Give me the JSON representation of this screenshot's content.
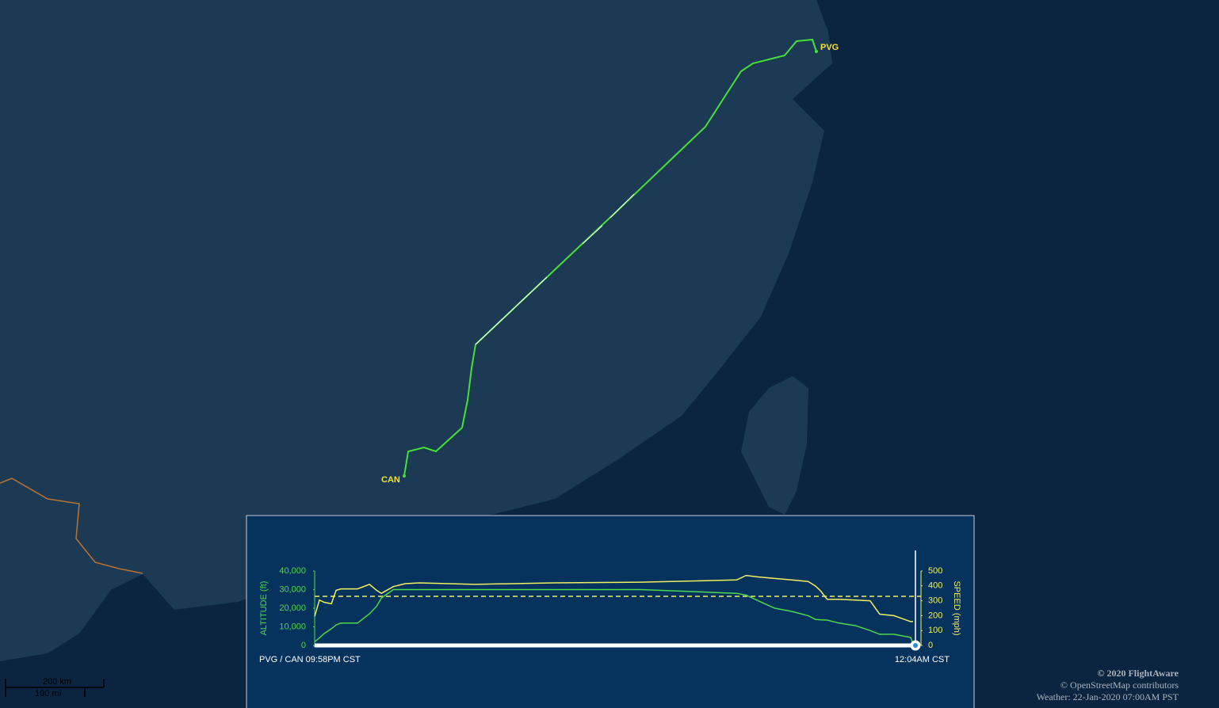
{
  "map": {
    "airports": [
      "PVG",
      "CAN"
    ],
    "scale": [
      "200 km",
      "100 mi"
    ],
    "credits": [
      "© 2020 FlightAware",
      "© OpenStreetMap contributors",
      "Weather: 22-Jan-2020 07:00AM PST"
    ]
  },
  "chart_data": {
    "type": "line",
    "x": [
      0,
      1,
      2,
      3.5,
      4.5,
      5.5,
      7,
      9,
      11.5,
      13,
      14,
      16.5,
      19,
      22,
      33.5,
      50,
      68.5,
      88.5,
      90.5,
      93,
      96.5,
      100,
      103.5,
      105,
      106,
      107.5,
      110,
      113.5,
      116.5,
      118.5,
      121.5,
      125,
      125.5
    ],
    "series": [
      {
        "name": "ALTITUDE (ft)",
        "color": "#4cd94c",
        "values": [
          2000,
          4000,
          6400,
          9000,
          11000,
          12000,
          12000,
          12000,
          17000,
          21000,
          25500,
          30000,
          30000,
          30000,
          30000,
          30000,
          30000,
          28000,
          27000,
          24000,
          20000,
          18300,
          16000,
          14000,
          13800,
          13600,
          12000,
          10600,
          8000,
          6000,
          6000,
          4300,
          900
        ]
      },
      {
        "name": "SPEED (mph)",
        "color": "#f0f060",
        "axis": "y2",
        "values": [
          195,
          305,
          290,
          280,
          370,
          380,
          380,
          380,
          410,
          370,
          350,
          395,
          415,
          420,
          410,
          420,
          425,
          440,
          470,
          460,
          450,
          440,
          430,
          400,
          370,
          310,
          310,
          305,
          300,
          210,
          200,
          160,
          160
        ]
      }
    ],
    "hline": {
      "value": 330,
      "axis": "y2",
      "color": "#f0f060",
      "dash": true
    },
    "xlim": [
      0,
      126
    ],
    "xticks": [
      {
        "value": 0,
        "label": "PVG / CAN 09:58PM CST"
      },
      {
        "value": 126,
        "label": "12:04AM CST"
      }
    ],
    "ylim": [
      0,
      40000
    ],
    "yticks": [
      0,
      {
        "value": 10000,
        "label": "10,000"
      },
      {
        "value": 20000,
        "label": "20,000"
      },
      {
        "value": 30000,
        "label": "30,000"
      },
      {
        "value": 40000,
        "label": "40,000"
      }
    ],
    "y2lim": [
      0,
      500
    ],
    "y2ticks": [
      0,
      100,
      200,
      300,
      400,
      500
    ]
  }
}
